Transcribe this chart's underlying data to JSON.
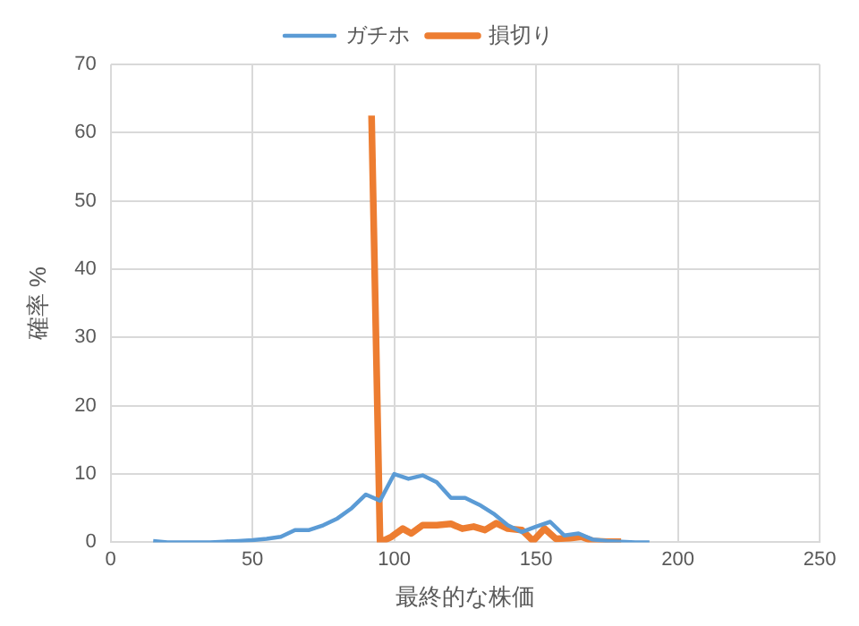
{
  "chart_data": {
    "type": "line",
    "xlabel": "最終的な株価",
    "ylabel": "確率 %",
    "xlim": [
      0,
      250
    ],
    "xticks": [
      0,
      50,
      100,
      150,
      200,
      250
    ],
    "ylim": [
      0,
      70
    ],
    "yticks": [
      0,
      10,
      20,
      30,
      40,
      50,
      60,
      70
    ],
    "grid": true,
    "legend": "top",
    "marker": "none",
    "line_style": "solid",
    "series": [
      {
        "name": "ガチホ",
        "color": "#5b9bd5",
        "x": [
          15,
          20,
          25,
          30,
          35,
          40,
          45,
          50,
          55,
          60,
          65,
          70,
          75,
          80,
          85,
          90,
          95,
          100,
          105,
          110,
          115,
          120,
          125,
          130,
          135,
          140,
          145,
          150,
          155,
          160,
          165,
          170,
          175,
          180,
          185,
          190
        ],
        "values": [
          0.2,
          0,
          0,
          0,
          0,
          0.1,
          0.2,
          0.3,
          0.5,
          0.8,
          1.8,
          1.8,
          2.5,
          3.5,
          5,
          7,
          6.1,
          10,
          9.3,
          9.8,
          8.8,
          6.5,
          6.5,
          5.5,
          4.2,
          2.5,
          1.5,
          2.3,
          3,
          1,
          1.3,
          0.4,
          0.2,
          0.1,
          0,
          0
        ]
      },
      {
        "name": "損切り",
        "color": "#ed7d31",
        "x": [
          92,
          95,
          99,
          103,
          106,
          110,
          115,
          120,
          124,
          128,
          132,
          136,
          140,
          145,
          149,
          153,
          157,
          162,
          166,
          170,
          175,
          180
        ],
        "values": [
          62.5,
          0,
          0.8,
          2,
          1.3,
          2.5,
          2.5,
          2.7,
          2,
          2.3,
          1.8,
          2.8,
          2,
          1.8,
          0.2,
          2,
          0.5,
          0.6,
          0.8,
          0.2,
          0.1,
          0.1
        ]
      }
    ]
  }
}
